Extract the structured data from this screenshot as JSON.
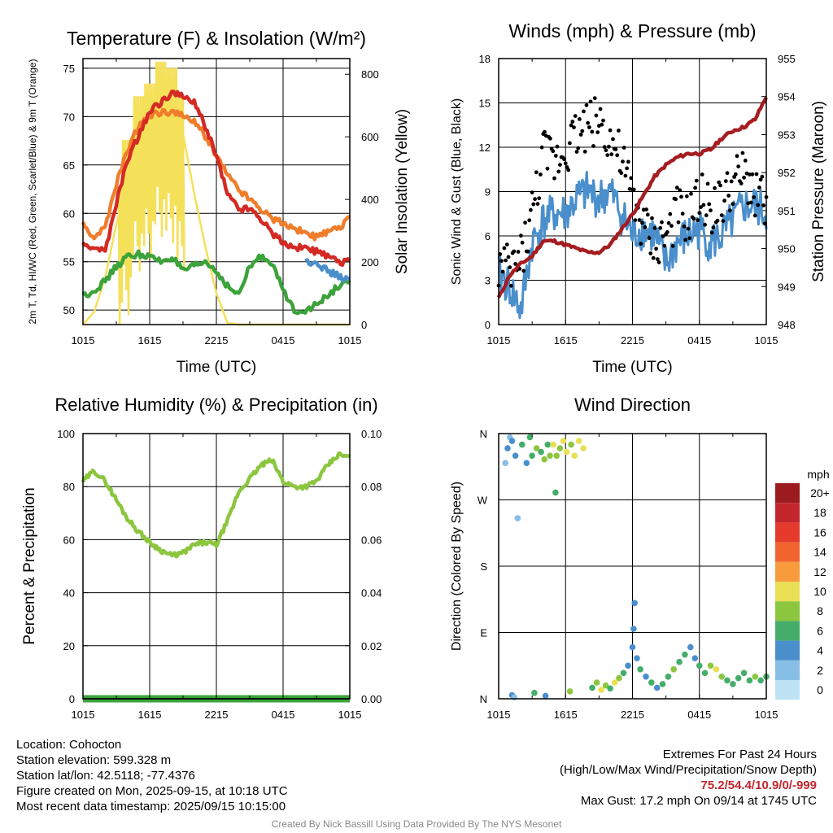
{
  "chart_data": [
    {
      "type": "line",
      "title": "Temperature (F) & Insolation (W/m²)",
      "xlabel": "Time (UTC)",
      "ylabel": "2m T, Td, HI/WC (Red, Green, Scarlet/Blue) & 9m T (Orange)",
      "y2label": "Solar Insolation (Yellow)",
      "x_tick_labels": [
        "1015",
        "1615",
        "2215",
        "0415",
        "1015"
      ],
      "x": [
        0,
        1,
        2,
        3,
        4,
        5,
        6,
        7,
        8,
        9,
        10,
        11,
        12,
        13,
        14,
        15,
        16,
        17,
        18,
        19,
        20,
        21,
        22,
        23,
        24
      ],
      "x_units": "hours since 1015 UTC",
      "ylim": [
        48.5,
        76
      ],
      "y_ticks": [
        50,
        55,
        60,
        65,
        70,
        75
      ],
      "y2lim": [
        0,
        850
      ],
      "y2_ticks": [
        0,
        200,
        400,
        600,
        800
      ],
      "grid": true,
      "series": [
        {
          "name": "2m T",
          "color": "#d42a24",
          "axis": "left",
          "values": [
            56.7,
            56.5,
            56.0,
            61.0,
            65.5,
            68.0,
            70.5,
            71.5,
            72.5,
            72.0,
            71.5,
            69.0,
            66.0,
            62.0,
            60.5,
            60.5,
            59.5,
            58.0,
            57.0,
            56.5,
            56.5,
            56.0,
            55.5,
            55.0,
            55.0
          ]
        },
        {
          "name": "9m T",
          "color": "#f07d2c",
          "axis": "left",
          "values": [
            58.8,
            57.5,
            58.5,
            63.0,
            66.5,
            69.0,
            70.0,
            70.5,
            70.5,
            70.0,
            69.5,
            68.0,
            66.0,
            64.0,
            62.5,
            61.5,
            60.5,
            59.5,
            59.0,
            58.5,
            58.0,
            57.5,
            58.0,
            58.5,
            59.5
          ]
        },
        {
          "name": "2m Td",
          "color": "#3ca33b",
          "axis": "left",
          "values": [
            51.5,
            52.0,
            53.0,
            54.5,
            55.5,
            55.8,
            55.5,
            55.0,
            55.5,
            54.0,
            54.5,
            55.0,
            54.0,
            52.5,
            51.5,
            54.5,
            55.5,
            55.0,
            52.0,
            50.0,
            50.0,
            50.5,
            51.5,
            52.5,
            53.0
          ]
        },
        {
          "name": "HI/WC",
          "color": "#4a8fcc",
          "axis": "left",
          "values": [
            null,
            null,
            null,
            null,
            null,
            null,
            null,
            null,
            null,
            null,
            null,
            null,
            null,
            null,
            null,
            null,
            null,
            null,
            null,
            null,
            55.0,
            55.0,
            54.0,
            53.5,
            53.0
          ]
        },
        {
          "name": "Solar Insolation",
          "color": "#f5e05a",
          "axis": "right",
          "values": [
            0,
            40,
            150,
            320,
            470,
            610,
            650,
            720,
            700,
            610,
            420,
            250,
            100,
            5,
            0,
            0,
            0,
            0,
            0,
            0,
            0,
            0,
            0,
            0,
            0
          ]
        }
      ]
    },
    {
      "type": "line",
      "title": "Winds (mph) & Pressure (mb)",
      "xlabel": "Time (UTC)",
      "ylabel": "Sonic Wind & Gust (Blue, Black)",
      "y2label": "Station Pressure (Maroon)",
      "x_tick_labels": [
        "1015",
        "1615",
        "2215",
        "0415",
        "1015"
      ],
      "x": [
        0,
        1,
        2,
        3,
        4,
        5,
        6,
        7,
        8,
        9,
        10,
        11,
        12,
        13,
        14,
        15,
        16,
        17,
        18,
        19,
        20,
        21,
        22,
        23,
        24
      ],
      "x_units": "hours since 1015 UTC",
      "ylim": [
        0,
        18
      ],
      "y_ticks": [
        0,
        3,
        6,
        9,
        12,
        15,
        18
      ],
      "y2lim": [
        948,
        955
      ],
      "y2_ticks": [
        948,
        949,
        950,
        951,
        952,
        953,
        954,
        955
      ],
      "grid": true,
      "series": [
        {
          "name": "Sonic Wind",
          "color": "#4a8fcc",
          "axis": "left",
          "style": "line",
          "values": [
            3.5,
            2.5,
            1.0,
            5.5,
            7.0,
            7.5,
            7.5,
            8.5,
            9.0,
            8.5,
            9.0,
            7.5,
            6.0,
            6.5,
            6.0,
            4.0,
            5.5,
            6.0,
            6.5,
            5.5,
            6.0,
            7.0,
            8.0,
            8.0,
            7.5
          ]
        },
        {
          "name": "Gust",
          "color": "#000000",
          "axis": "left",
          "style": "dots",
          "values": [
            4.0,
            3.5,
            4.5,
            7.5,
            11.5,
            11.0,
            12.0,
            13.0,
            13.5,
            14.0,
            12.5,
            11.0,
            8.5,
            6.5,
            5.5,
            6.0,
            7.5,
            7.0,
            8.5,
            8.0,
            8.0,
            9.5,
            10.0,
            9.0,
            8.5
          ]
        },
        {
          "name": "Station Pressure",
          "color": "#a51d21",
          "axis": "right",
          "style": "line",
          "values": [
            948.7,
            949.3,
            949.6,
            949.8,
            950.2,
            950.2,
            950.1,
            950.0,
            949.9,
            949.9,
            950.1,
            950.5,
            950.9,
            951.4,
            951.9,
            952.2,
            952.4,
            952.5,
            952.5,
            952.6,
            952.9,
            953.1,
            953.2,
            953.4,
            954.0
          ]
        }
      ]
    },
    {
      "type": "line",
      "title": "Relative Humidity (%) & Precipitation (in)",
      "ylabel": "Percent & Precipitation",
      "x_tick_labels": [
        "1015",
        "1615",
        "2215",
        "0415",
        "1015"
      ],
      "x": [
        0,
        1,
        2,
        3,
        4,
        5,
        6,
        7,
        8,
        9,
        10,
        11,
        12,
        13,
        14,
        15,
        16,
        17,
        18,
        19,
        20,
        21,
        22,
        23,
        24
      ],
      "x_units": "hours since 1015 UTC",
      "ylim": [
        0,
        100
      ],
      "y_ticks": [
        0,
        20,
        40,
        60,
        80,
        100
      ],
      "y2lim": [
        0,
        0.1
      ],
      "y2_ticks": [
        "0.00",
        "0.02",
        "0.04",
        "0.06",
        "0.08",
        "0.10"
      ],
      "grid": true,
      "series": [
        {
          "name": "Relative Humidity",
          "color": "#8cc63f",
          "axis": "left",
          "values": [
            82,
            86,
            82,
            75,
            68,
            63,
            59,
            56,
            54,
            55,
            58,
            59,
            58,
            67,
            78,
            83,
            88,
            90,
            82,
            80,
            80,
            82,
            88,
            92,
            91
          ]
        },
        {
          "name": "Precipitation",
          "color": "#3ca33b",
          "axis": "right",
          "values": [
            0,
            0,
            0,
            0,
            0,
            0,
            0,
            0,
            0,
            0,
            0,
            0,
            0,
            0,
            0,
            0,
            0,
            0,
            0,
            0,
            0,
            0,
            0,
            0,
            0
          ]
        }
      ]
    },
    {
      "type": "scatter",
      "title": "Wind Direction",
      "ylabel": "Direction (Colored By Speed)",
      "x_tick_labels": [
        "1015",
        "1615",
        "2215",
        "0415",
        "1015"
      ],
      "x_units": "hours since 1015 UTC",
      "y_units": "degrees (N=0/360 at bottom, E=90, S=180, W=270, N=360 at top)",
      "y_tick_labels": [
        "N",
        "E",
        "S",
        "W",
        "N"
      ],
      "ylim": [
        0,
        360
      ],
      "colorbar_title": "mph",
      "colorbar_labels": [
        "20+",
        "18",
        "16",
        "14",
        "12",
        "10",
        "8",
        "6",
        "4",
        "2",
        "0"
      ],
      "colorbar_colors": [
        "#9c1b1f",
        "#c1272d",
        "#e43b2c",
        "#f0652e",
        "#f89b3c",
        "#e9df55",
        "#8cc63f",
        "#45ad6a",
        "#4a8fcc",
        "#86bee5",
        "#bde3f5"
      ],
      "points": [
        {
          "x": 0.6,
          "y": 320,
          "speed": 2
        },
        {
          "x": 0.8,
          "y": 340,
          "speed": 3
        },
        {
          "x": 1.0,
          "y": 355,
          "speed": 2
        },
        {
          "x": 1.2,
          "y": 350,
          "speed": 4
        },
        {
          "x": 1.5,
          "y": 330,
          "speed": 3
        },
        {
          "x": 1.7,
          "y": 245,
          "speed": 2
        },
        {
          "x": 2.1,
          "y": 345,
          "speed": 5
        },
        {
          "x": 2.5,
          "y": 320,
          "speed": 4
        },
        {
          "x": 2.8,
          "y": 355,
          "speed": 6
        },
        {
          "x": 3.0,
          "y": 330,
          "speed": 5
        },
        {
          "x": 3.4,
          "y": 340,
          "speed": 7
        },
        {
          "x": 3.8,
          "y": 335,
          "speed": 6
        },
        {
          "x": 4.1,
          "y": 325,
          "speed": 8
        },
        {
          "x": 4.4,
          "y": 345,
          "speed": 6
        },
        {
          "x": 4.6,
          "y": 330,
          "speed": 8
        },
        {
          "x": 4.9,
          "y": 345,
          "speed": 9
        },
        {
          "x": 5.2,
          "y": 330,
          "speed": 7
        },
        {
          "x": 5.5,
          "y": 340,
          "speed": 8
        },
        {
          "x": 5.8,
          "y": 350,
          "speed": 9
        },
        {
          "x": 6.1,
          "y": 335,
          "speed": 10
        },
        {
          "x": 6.5,
          "y": 345,
          "speed": 8
        },
        {
          "x": 6.8,
          "y": 330,
          "speed": 9
        },
        {
          "x": 7.2,
          "y": 350,
          "speed": 10
        },
        {
          "x": 7.6,
          "y": 340,
          "speed": 9
        },
        {
          "x": 5.1,
          "y": 280,
          "speed": 6
        },
        {
          "x": 1.2,
          "y": 5,
          "speed": 3
        },
        {
          "x": 1.4,
          "y": 2,
          "speed": 2
        },
        {
          "x": 3.2,
          "y": 8,
          "speed": 6
        },
        {
          "x": 4.2,
          "y": 4,
          "speed": 4
        },
        {
          "x": 6.4,
          "y": 10,
          "speed": 7
        },
        {
          "x": 8.4,
          "y": 15,
          "speed": 6
        },
        {
          "x": 8.8,
          "y": 22,
          "speed": 8
        },
        {
          "x": 9.2,
          "y": 12,
          "speed": 10
        },
        {
          "x": 9.6,
          "y": 18,
          "speed": 8
        },
        {
          "x": 10.0,
          "y": 14,
          "speed": 6
        },
        {
          "x": 10.4,
          "y": 22,
          "speed": 9
        },
        {
          "x": 10.8,
          "y": 28,
          "speed": 7
        },
        {
          "x": 11.2,
          "y": 35,
          "speed": 5
        },
        {
          "x": 11.6,
          "y": 45,
          "speed": 4
        },
        {
          "x": 12.0,
          "y": 70,
          "speed": 3
        },
        {
          "x": 12.1,
          "y": 95,
          "speed": 4
        },
        {
          "x": 12.2,
          "y": 130,
          "speed": 3
        },
        {
          "x": 12.4,
          "y": 55,
          "speed": 4
        },
        {
          "x": 12.7,
          "y": 40,
          "speed": 5
        },
        {
          "x": 13.2,
          "y": 30,
          "speed": 4
        },
        {
          "x": 13.7,
          "y": 22,
          "speed": 6
        },
        {
          "x": 14.2,
          "y": 15,
          "speed": 4
        },
        {
          "x": 14.7,
          "y": 20,
          "speed": 5
        },
        {
          "x": 15.2,
          "y": 30,
          "speed": 6
        },
        {
          "x": 15.7,
          "y": 40,
          "speed": 7
        },
        {
          "x": 16.2,
          "y": 50,
          "speed": 6
        },
        {
          "x": 16.7,
          "y": 60,
          "speed": 5
        },
        {
          "x": 17.2,
          "y": 70,
          "speed": 4
        },
        {
          "x": 17.6,
          "y": 55,
          "speed": 4
        },
        {
          "x": 18.0,
          "y": 45,
          "speed": 5
        },
        {
          "x": 18.5,
          "y": 35,
          "speed": 6
        },
        {
          "x": 19.0,
          "y": 45,
          "speed": 8
        },
        {
          "x": 19.5,
          "y": 40,
          "speed": 9
        },
        {
          "x": 20.0,
          "y": 30,
          "speed": 7
        },
        {
          "x": 20.5,
          "y": 25,
          "speed": 6
        },
        {
          "x": 21.0,
          "y": 20,
          "speed": 5
        },
        {
          "x": 21.5,
          "y": 28,
          "speed": 6
        },
        {
          "x": 22.0,
          "y": 35,
          "speed": 5
        },
        {
          "x": 22.5,
          "y": 25,
          "speed": 6
        },
        {
          "x": 23.0,
          "y": 30,
          "speed": 7
        },
        {
          "x": 23.5,
          "y": 25,
          "speed": 6
        },
        {
          "x": 24.0,
          "y": 30,
          "speed": 5
        }
      ]
    }
  ],
  "info": {
    "location": "Location: Cohocton",
    "elevation": "Station elevation: 599.328 m",
    "latlon": "Station lat/lon: 42.5118; -77.4376",
    "created": "Figure created on Mon, 2025-09-15, at 10:18 UTC",
    "recent": "Most recent data timestamp: 2025/09/15 10:15:00"
  },
  "extremes": {
    "title": "Extremes For Past 24 Hours",
    "subtitle": "(High/Low/Max Wind/Precipitation/Snow Depth)",
    "values": "75.2/54.4/10.9/0/-999",
    "gust": "Max Gust: 17.2 mph On 09/14 at 1745 UTC"
  },
  "credit": "Created By Nick Bassill Using Data Provided By The NYS Mesonet"
}
